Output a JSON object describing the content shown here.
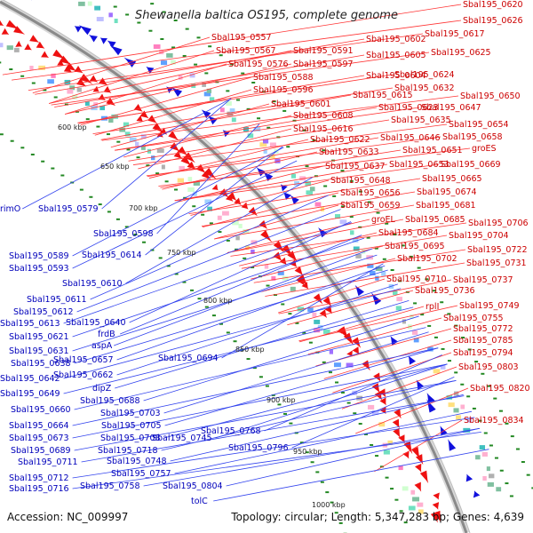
{
  "title": "Shewanella baltica OS195, complete genome",
  "footer": {
    "accession": "Accession: NC_009997",
    "summary": "Topology: circular; Length: 5,347,283 bp; Genes: 4,639"
  },
  "colors": {
    "forward": "#ee1111",
    "reverse": "#1111dd",
    "forward_label": "#cc0000",
    "reverse_label": "#0000bb",
    "backbone": "#999999",
    "tick_dots": "#228822"
  },
  "kbp_ticks": [
    "600 kbp",
    "650 kbp",
    "700 kbp",
    "750 kbp",
    "800 kbp",
    "850 kbp",
    "900 kbp",
    "950 kbp",
    "1000 kbp"
  ],
  "forward_labels": [
    "Sbal195_0557",
    "Sbal195_0567",
    "Sbal195_0576",
    "Sbal195_0588",
    "Sbal195_0596",
    "Sbal195_0591",
    "Sbal195_0597",
    "Sbal195_0601",
    "Sbal195_0608",
    "Sbal195_0616",
    "Sbal195_0622",
    "Sbal195_0633",
    "Sbal195_0637",
    "Sbal195_0648",
    "Sbal195_0656",
    "Sbal195_0659",
    "groEL",
    "Sbal195_0684",
    "Sbal195_0695",
    "Sbal195_0702",
    "Sbal195_0710",
    "Sbal195_0736",
    "rplI",
    "Sbal195_0755",
    "Sbal195_0772",
    "Sbal195_0785",
    "Sbal195_0794",
    "Sbal195_0803",
    "Sbal195_0820",
    "Sbal195_0834",
    "Sbal195_0620",
    "Sbal195_0626",
    "Sbal195_0617",
    "Sbal195_0602",
    "Sbal195_0605",
    "Sbal195_0625",
    "Sbal195_0604",
    "Sbal195_0624",
    "Sbal195_0632",
    "Sbal195_0615",
    "Sbal195_0650",
    "Sbal195_0623",
    "Sbal195_0647",
    "Sbal195_0635",
    "Sbal195_0654",
    "Sbal195_0646",
    "Sbal195_0658",
    "Sbal195_0651",
    "groES",
    "Sbal195_0653",
    "Sbal195_0669",
    "Sbal195_0665",
    "Sbal195_0674",
    "Sbal195_0681",
    "Sbal195_0685",
    "Sbal195_0706",
    "Sbal195_0704",
    "Sbal195_0722",
    "Sbal195_0731",
    "Sbal195_0737",
    "Sbal195_0749"
  ],
  "reverse_labels": [
    "rimO",
    "Sbal195_0579",
    "Sbal195_0598",
    "Sbal195_0589",
    "Sbal195_0614",
    "Sbal195_0593",
    "Sbal195_0610",
    "Sbal195_0611",
    "Sbal195_0612",
    "Sbal195_0613",
    "Sbal195_0640",
    "frdB",
    "Sbal195_0621",
    "aspA",
    "Sbal195_0631",
    "Sbal195_0657",
    "Sbal195_0694",
    "Sbal195_0638",
    "Sbal195_0642",
    "Sbal195_0662",
    "Sbal195_0649",
    "dipZ",
    "Sbal195_0688",
    "Sbal195_0660",
    "Sbal195_0703",
    "Sbal195_0664",
    "Sbal195_0705",
    "Sbal195_0673",
    "Sbal195_0708",
    "Sbal195_0745",
    "Sbal195_0689",
    "Sbal195_0718",
    "Sbal195_0768",
    "Sbal195_0711",
    "Sbal195_0748",
    "Sbal195_0796",
    "Sbal195_0712",
    "Sbal195_0757",
    "Sbal195_0716",
    "Sbal195_0758",
    "Sbal195_0804",
    "tolC"
  ]
}
